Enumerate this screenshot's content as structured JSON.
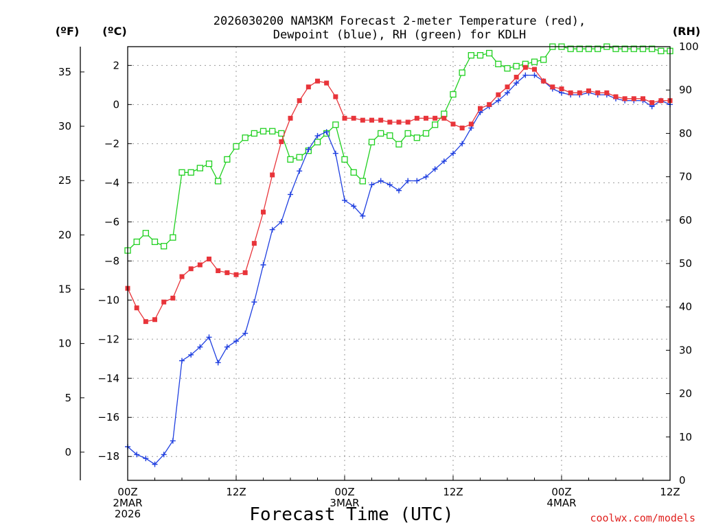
{
  "chart_data": {
    "type": "line",
    "title_line1": "2026030200 NAM3KM Forecast 2-meter Temperature (red),",
    "title_line2": "Dewpoint (blue), RH (green) for KDLH",
    "xlabel": "Forecast Time (UTC)",
    "credit": "coolwx.com/models",
    "units": {
      "left_f": "(ºF)",
      "left_c": "(ºC)",
      "right": "(RH)"
    },
    "ylim_c": [
      -19.22,
      2.96
    ],
    "ylim_rh": [
      0,
      100
    ],
    "yticks_c": [
      2,
      0,
      -2,
      -4,
      -6,
      -8,
      -10,
      -12,
      -14,
      -16,
      -18
    ],
    "yticks_c_labels": [
      "2",
      "0",
      "−2",
      "−4",
      "−6",
      "−8",
      "−10",
      "−12",
      "−14",
      "−16",
      "−18"
    ],
    "yticks_f": [
      35,
      30,
      25,
      20,
      15,
      10,
      5,
      0
    ],
    "yticks_f_labels": [
      "35",
      "30",
      "25",
      "20",
      "15",
      "10",
      "5",
      "0"
    ],
    "yticks_rh": [
      100,
      90,
      80,
      70,
      60,
      50,
      40,
      30,
      20,
      10,
      0
    ],
    "yticks_rh_labels": [
      "100",
      "90",
      "80",
      "70",
      "60",
      "50",
      "40",
      "30",
      "20",
      "10",
      "0"
    ],
    "xlim_hours": [
      0,
      60
    ],
    "xticks": [
      {
        "hour": 0,
        "lines": [
          "00Z",
          "2MAR",
          "2026"
        ]
      },
      {
        "hour": 12,
        "lines": [
          "12Z"
        ]
      },
      {
        "hour": 24,
        "lines": [
          "00Z",
          "3MAR"
        ]
      },
      {
        "hour": 36,
        "lines": [
          "12Z"
        ]
      },
      {
        "hour": 48,
        "lines": [
          "00Z",
          "4MAR"
        ]
      },
      {
        "hour": 60,
        "lines": [
          "12Z"
        ]
      }
    ],
    "hours": [
      0,
      1,
      2,
      3,
      4,
      5,
      6,
      7,
      8,
      9,
      10,
      11,
      12,
      13,
      14,
      15,
      16,
      17,
      18,
      19,
      20,
      21,
      22,
      23,
      24,
      25,
      26,
      27,
      28,
      29,
      30,
      31,
      32,
      33,
      34,
      35,
      36,
      37,
      38,
      39,
      40,
      41,
      42,
      43,
      44,
      45,
      46,
      47,
      48,
      49,
      50,
      51,
      52,
      53,
      54,
      55,
      56,
      57,
      58,
      59,
      60
    ],
    "series": [
      {
        "name": "Temperature",
        "unit": "C",
        "color": "#e8343a",
        "marker": "filled-square",
        "values": [
          -9.4,
          -10.4,
          -11.1,
          -11.0,
          -10.1,
          -9.9,
          -8.8,
          -8.4,
          -8.2,
          -7.9,
          -8.5,
          -8.6,
          -8.7,
          -8.6,
          -7.1,
          -5.5,
          -3.6,
          -1.9,
          -0.7,
          0.2,
          0.9,
          1.2,
          1.1,
          0.4,
          -0.7,
          -0.7,
          -0.8,
          -0.8,
          -0.8,
          -0.9,
          -0.9,
          -0.9,
          -0.7,
          -0.7,
          -0.7,
          -0.7,
          -1.0,
          -1.2,
          -1.0,
          -0.2,
          0.0,
          0.5,
          0.9,
          1.4,
          1.9,
          1.8,
          1.2,
          0.9,
          0.8,
          0.6,
          0.6,
          0.7,
          0.6,
          0.6,
          0.4,
          0.3,
          0.3,
          0.3,
          0.1,
          0.2,
          0.2
        ]
      },
      {
        "name": "Dewpoint",
        "unit": "C",
        "color": "#1f3fe0",
        "marker": "plus",
        "values": [
          -17.5,
          -17.9,
          -18.1,
          -18.4,
          -17.9,
          -17.2,
          -13.1,
          -12.8,
          -12.4,
          -11.9,
          -13.2,
          -12.4,
          -12.1,
          -11.7,
          -10.1,
          -8.2,
          -6.4,
          -6.0,
          -4.6,
          -3.4,
          -2.3,
          -1.6,
          -1.4,
          -2.5,
          -4.9,
          -5.2,
          -5.7,
          -4.1,
          -3.9,
          -4.1,
          -4.4,
          -3.9,
          -3.9,
          -3.7,
          -3.3,
          -2.9,
          -2.5,
          -2.0,
          -1.2,
          -0.4,
          -0.1,
          0.2,
          0.6,
          1.1,
          1.5,
          1.5,
          1.2,
          0.8,
          0.6,
          0.5,
          0.5,
          0.6,
          0.5,
          0.5,
          0.3,
          0.2,
          0.2,
          0.2,
          -0.1,
          0.2,
          0.0
        ]
      },
      {
        "name": "RH",
        "unit": "%",
        "color": "#1fd01f",
        "marker": "open-square",
        "values": [
          53,
          55,
          57,
          55,
          54,
          56,
          71,
          71,
          72,
          73,
          69,
          74,
          77,
          79,
          80,
          80.5,
          80.5,
          80,
          74,
          74.5,
          76,
          78,
          80,
          82,
          74,
          71,
          69,
          78,
          80,
          79.5,
          77.5,
          80,
          79,
          80,
          82,
          84.5,
          89,
          94,
          98,
          98,
          98.5,
          96,
          95,
          95.5,
          96,
          96.5,
          97,
          100,
          100,
          99.5,
          99.5,
          99.5,
          99.5,
          100,
          99.5,
          99.5,
          99.5,
          99.5,
          99.5,
          99,
          99
        ]
      }
    ]
  }
}
